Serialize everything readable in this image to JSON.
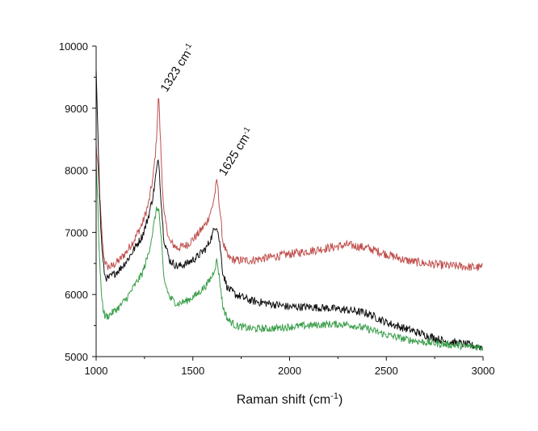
{
  "chart_data": {
    "type": "line",
    "title": "",
    "xlabel": "Raman shift (cm",
    "xlabel_sup": "-1",
    "xlabel_close": ")",
    "ylabel": "",
    "xlim": [
      1000,
      3000
    ],
    "ylim": [
      5000,
      10000
    ],
    "xticks": [
      1000,
      1500,
      2000,
      2500,
      3000
    ],
    "yticks": [
      5000,
      6000,
      7000,
      8000,
      9000,
      10000
    ],
    "grid": false,
    "legend": "none",
    "annotations": [
      {
        "text": "1323 cm",
        "sup": "-1",
        "x": 1323,
        "y": 9300
      },
      {
        "text": "1625 cm",
        "sup": "-1",
        "x": 1625,
        "y": 7950
      }
    ],
    "series": [
      {
        "color": "#c0504d",
        "noise": 70,
        "x": [
          1000,
          1010,
          1020,
          1030,
          1040,
          1055,
          1080,
          1120,
          1160,
          1200,
          1240,
          1270,
          1295,
          1310,
          1323,
          1336,
          1350,
          1380,
          1420,
          1470,
          1520,
          1570,
          1600,
          1615,
          1625,
          1640,
          1655,
          1680,
          1720,
          1800,
          1900,
          2000,
          2100,
          2200,
          2300,
          2400,
          2500,
          2600,
          2700,
          2800,
          2900,
          3000
        ],
        "y": [
          8400,
          8000,
          7500,
          6950,
          6600,
          6450,
          6450,
          6550,
          6700,
          6900,
          7150,
          7450,
          7900,
          8400,
          9250,
          8200,
          7300,
          6850,
          6750,
          6800,
          6950,
          7150,
          7400,
          7650,
          7850,
          7350,
          6850,
          6600,
          6550,
          6550,
          6600,
          6650,
          6700,
          6750,
          6800,
          6750,
          6650,
          6550,
          6500,
          6470,
          6450,
          6430
        ]
      },
      {
        "color": "#111111",
        "noise": 65,
        "x": [
          1000,
          1008,
          1016,
          1025,
          1035,
          1045,
          1060,
          1080,
          1120,
          1160,
          1200,
          1240,
          1270,
          1295,
          1310,
          1323,
          1336,
          1350,
          1380,
          1420,
          1470,
          1520,
          1570,
          1600,
          1615,
          1625,
          1640,
          1655,
          1680,
          1720,
          1800,
          1900,
          2000,
          2100,
          2200,
          2300,
          2400,
          2500,
          2600,
          2700,
          2800,
          2900,
          3000
        ],
        "y": [
          9650,
          8800,
          7800,
          7000,
          6550,
          6300,
          6250,
          6300,
          6400,
          6550,
          6750,
          6950,
          7250,
          7600,
          7950,
          8200,
          7500,
          6900,
          6550,
          6450,
          6500,
          6600,
          6750,
          6950,
          7100,
          7100,
          6800,
          6350,
          6100,
          6000,
          5900,
          5850,
          5800,
          5800,
          5780,
          5750,
          5700,
          5550,
          5450,
          5350,
          5250,
          5200,
          5150
        ]
      },
      {
        "color": "#3a9e4a",
        "noise": 60,
        "x": [
          1000,
          1008,
          1016,
          1025,
          1035,
          1045,
          1060,
          1080,
          1120,
          1160,
          1200,
          1240,
          1270,
          1295,
          1310,
          1323,
          1336,
          1350,
          1380,
          1420,
          1470,
          1520,
          1570,
          1600,
          1615,
          1625,
          1640,
          1655,
          1680,
          1720,
          1800,
          1900,
          2000,
          2100,
          2200,
          2300,
          2400,
          2500,
          2600,
          2700,
          2800,
          2900,
          3000
        ],
        "y": [
          8200,
          7500,
          6700,
          6100,
          5800,
          5650,
          5650,
          5700,
          5800,
          5950,
          6150,
          6350,
          6650,
          7050,
          7350,
          7400,
          6900,
          6250,
          5950,
          5850,
          5900,
          6000,
          6150,
          6300,
          6450,
          6550,
          6200,
          5800,
          5600,
          5500,
          5450,
          5450,
          5480,
          5500,
          5520,
          5520,
          5450,
          5350,
          5280,
          5230,
          5200,
          5170,
          5150
        ]
      }
    ]
  }
}
